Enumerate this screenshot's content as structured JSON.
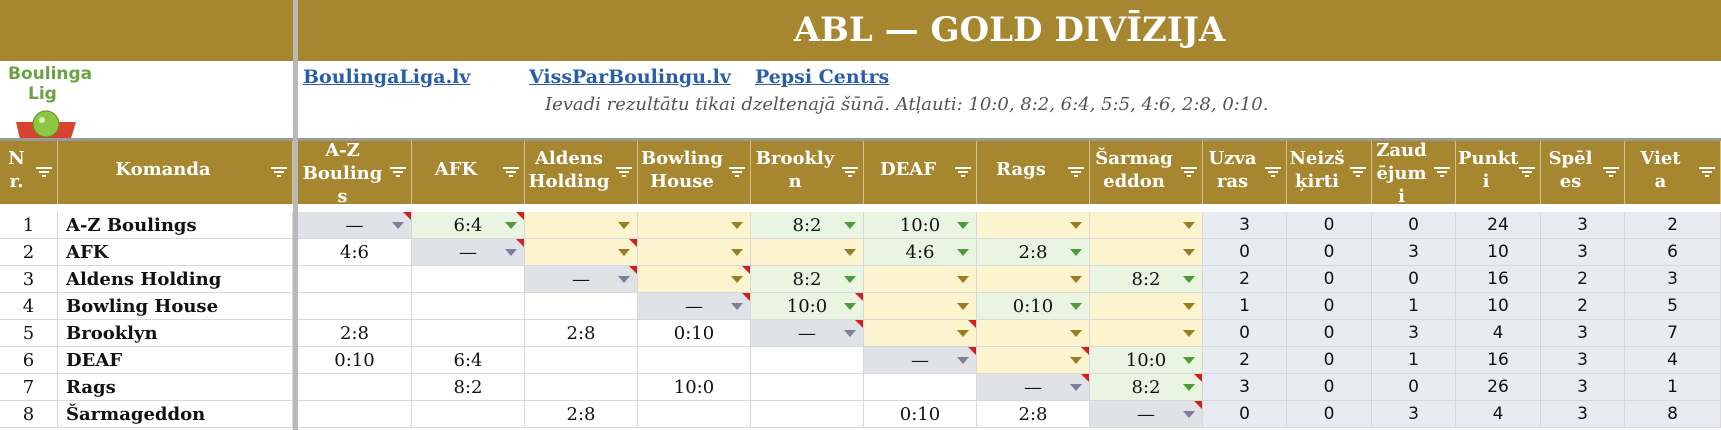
{
  "title": "ABL — GOLD DIVĪZIJA",
  "logo": {
    "line1": "Boulinga",
    "line2": "Lig"
  },
  "links": [
    "BoulingaLiga.lv",
    "VissParBoulingu.lv",
    "Pepsi Centrs"
  ],
  "note": "Ievadi rezultātu tikai dzeltenajā šūnā. Atļauti: 10:0, 8:2, 6:4, 5:5, 4:6, 2:8, 0:10.",
  "headers": [
    "Nr.",
    "Komanda",
    "A-Z Boulings",
    "AFK",
    "Aldens Holding",
    "Bowling House",
    "Brooklyn",
    "DEAF",
    "Rags",
    "Šarmageddon",
    "Uzvaras",
    "Neizšķirti",
    "Zaudējumi",
    "Punkti",
    "Spēles",
    "Vieta"
  ],
  "rows": [
    {
      "nr": "1",
      "team": "A-Z Boulings",
      "res": [
        "—",
        "6:4",
        "",
        "",
        "8:2",
        "10:0",
        "",
        ""
      ],
      "stats": [
        "3",
        "0",
        "0",
        "24",
        "3",
        "2"
      ]
    },
    {
      "nr": "2",
      "team": "AFK",
      "res": [
        "4:6",
        "—",
        "",
        "",
        "",
        "4:6",
        "2:8",
        ""
      ],
      "stats": [
        "0",
        "0",
        "3",
        "10",
        "3",
        "6"
      ]
    },
    {
      "nr": "3",
      "team": "Aldens Holding",
      "res": [
        "",
        "",
        "—",
        "",
        "8:2",
        "",
        "",
        "8:2"
      ],
      "stats": [
        "2",
        "0",
        "0",
        "16",
        "2",
        "3"
      ]
    },
    {
      "nr": "4",
      "team": "Bowling House",
      "res": [
        "",
        "",
        "",
        "—",
        "10:0",
        "",
        "0:10",
        ""
      ],
      "stats": [
        "1",
        "0",
        "1",
        "10",
        "2",
        "5"
      ]
    },
    {
      "nr": "5",
      "team": "Brooklyn",
      "res": [
        "2:8",
        "",
        "2:8",
        "0:10",
        "—",
        "",
        "",
        ""
      ],
      "stats": [
        "0",
        "0",
        "3",
        "4",
        "3",
        "7"
      ]
    },
    {
      "nr": "6",
      "team": "DEAF",
      "res": [
        "0:10",
        "6:4",
        "",
        "",
        "",
        "—",
        "",
        "10:0"
      ],
      "stats": [
        "2",
        "0",
        "1",
        "16",
        "3",
        "4"
      ]
    },
    {
      "nr": "7",
      "team": "Rags",
      "res": [
        "",
        "8:2",
        "",
        "10:0",
        "",
        "",
        "—",
        "8:2"
      ],
      "stats": [
        "3",
        "0",
        "0",
        "26",
        "3",
        "1"
      ]
    },
    {
      "nr": "8",
      "team": "Šarmageddon",
      "res": [
        "",
        "",
        "2:8",
        "",
        "",
        "0:10",
        "2:8",
        "—"
      ],
      "stats": [
        "0",
        "0",
        "3",
        "4",
        "3",
        "8"
      ]
    }
  ],
  "colors": {
    "header_bg": "#a78630",
    "input_yellow": "#fcf3cf",
    "filled_green": "#e9f4e1",
    "diagonal_grey": "#dfe2e7",
    "stats_bg": "#e8ecf2",
    "link": "#2a5fa7"
  }
}
